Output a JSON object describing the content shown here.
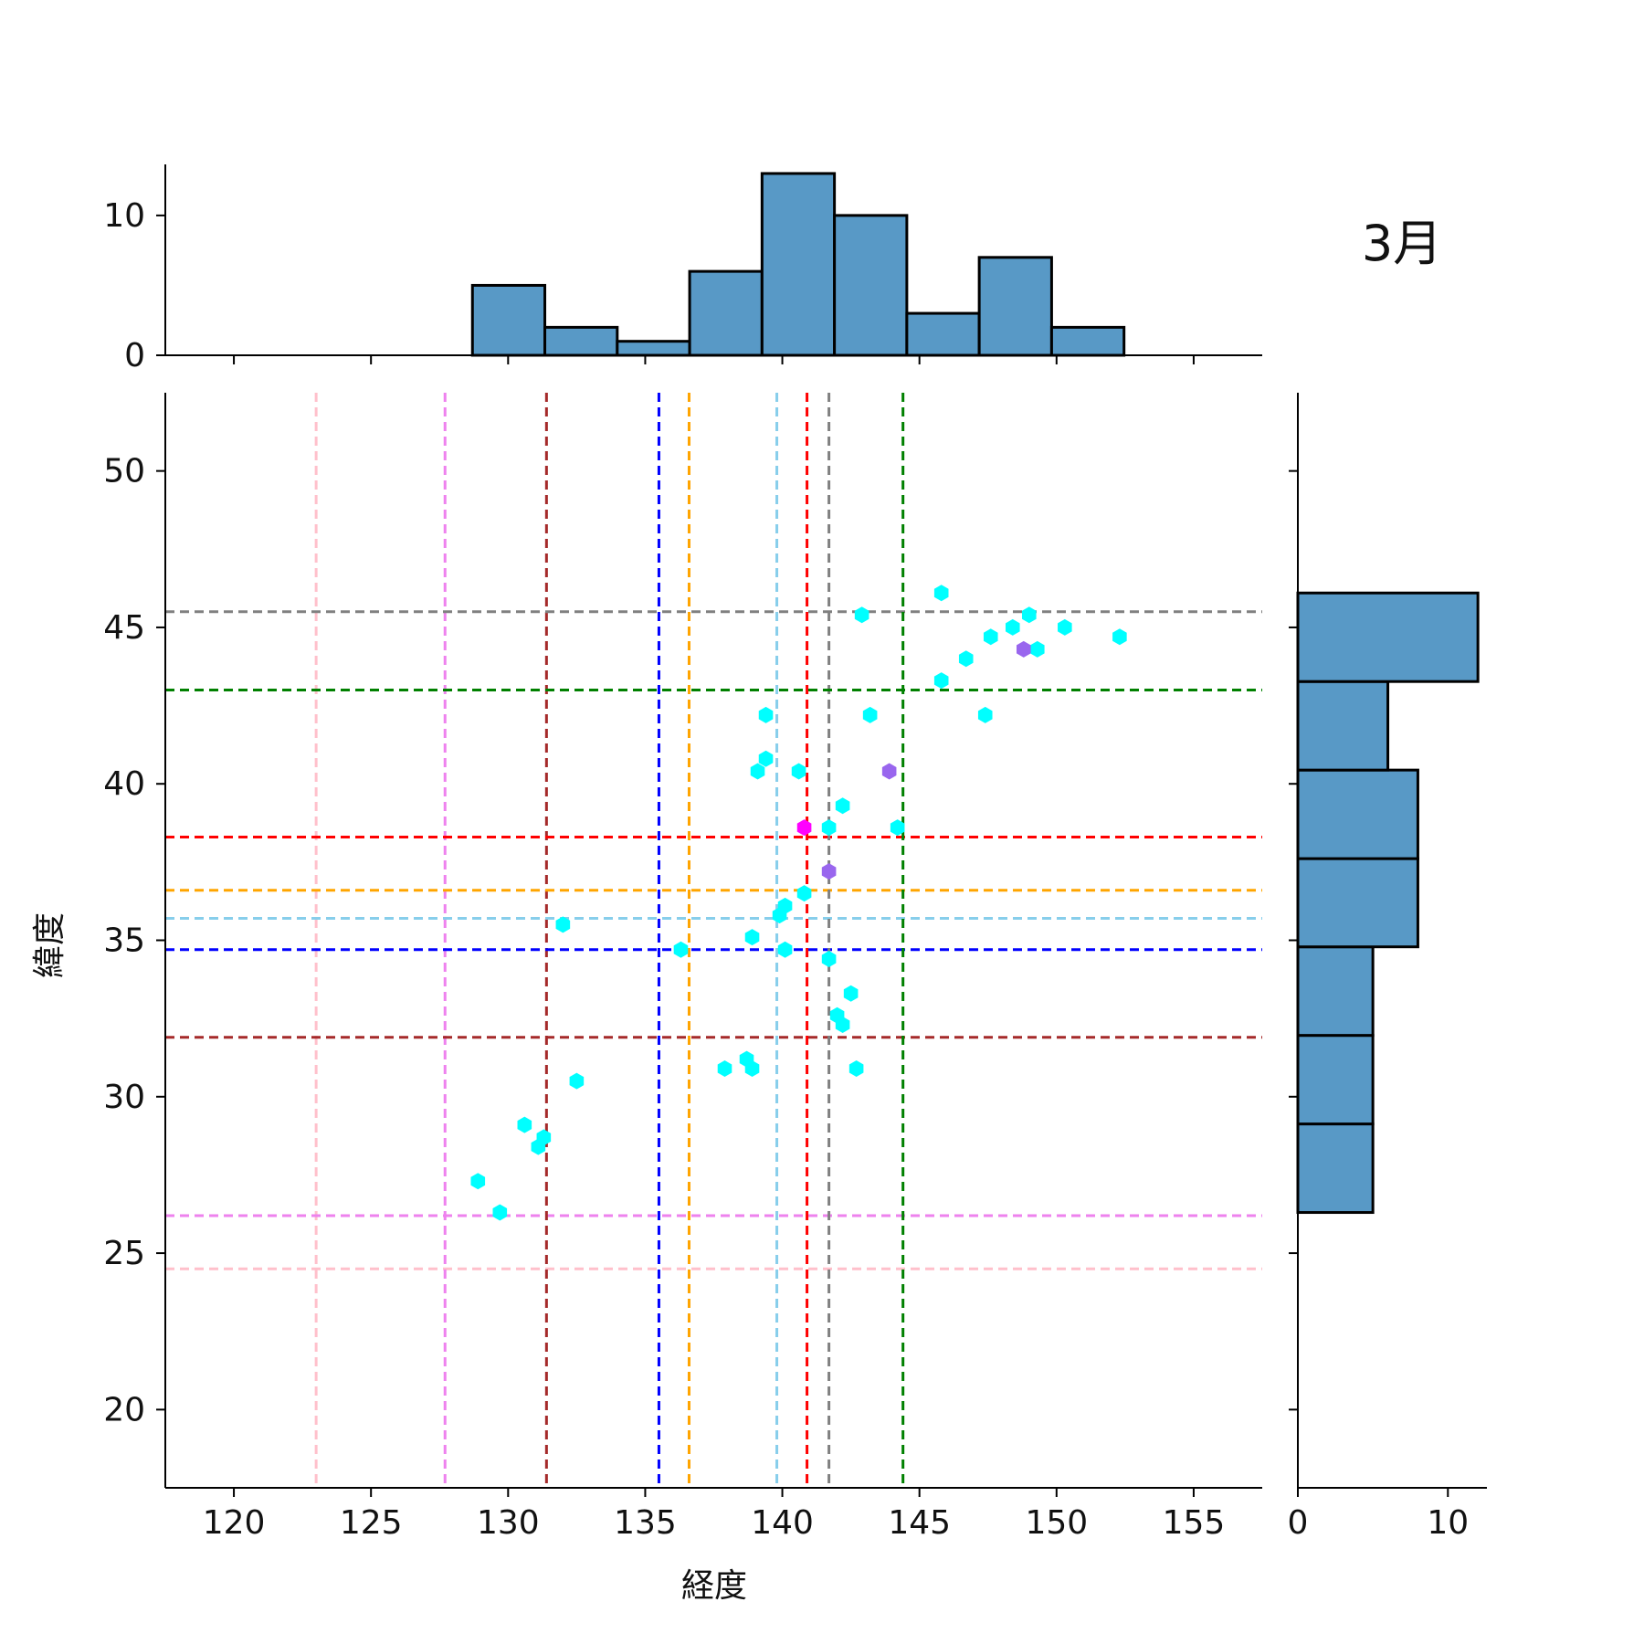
{
  "chart_data": {
    "type": "scatter",
    "subtype": "joint-hexbin-with-marginal-histograms",
    "annotation": "3月",
    "xlabel": "経度",
    "ylabel": "緯度",
    "xlim": [
      117.5,
      157.5
    ],
    "ylim": [
      17.5,
      52.5
    ],
    "xticks": [
      120,
      125,
      130,
      135,
      140,
      145,
      150,
      155
    ],
    "yticks": [
      20,
      25,
      30,
      35,
      40,
      45,
      50
    ],
    "grid": false,
    "hex_colors": {
      "low": "#00ffff",
      "mid": "#9966ee",
      "high": "#ff00ff"
    },
    "hex_points": [
      {
        "x": 145.8,
        "y": 46.1,
        "level": "low"
      },
      {
        "x": 142.9,
        "y": 45.4,
        "level": "low"
      },
      {
        "x": 149.0,
        "y": 45.4,
        "level": "low"
      },
      {
        "x": 148.4,
        "y": 45.0,
        "level": "low"
      },
      {
        "x": 150.3,
        "y": 45.0,
        "level": "low"
      },
      {
        "x": 147.6,
        "y": 44.7,
        "level": "low"
      },
      {
        "x": 152.3,
        "y": 44.7,
        "level": "low"
      },
      {
        "x": 149.3,
        "y": 44.3,
        "level": "low"
      },
      {
        "x": 148.8,
        "y": 44.3,
        "level": "mid"
      },
      {
        "x": 146.7,
        "y": 44.0,
        "level": "low"
      },
      {
        "x": 145.8,
        "y": 43.3,
        "level": "low"
      },
      {
        "x": 139.4,
        "y": 42.2,
        "level": "low"
      },
      {
        "x": 143.2,
        "y": 42.2,
        "level": "low"
      },
      {
        "x": 147.4,
        "y": 42.2,
        "level": "low"
      },
      {
        "x": 139.4,
        "y": 40.8,
        "level": "low"
      },
      {
        "x": 139.1,
        "y": 40.4,
        "level": "low"
      },
      {
        "x": 140.6,
        "y": 40.4,
        "level": "low"
      },
      {
        "x": 143.9,
        "y": 40.4,
        "level": "mid"
      },
      {
        "x": 142.2,
        "y": 39.3,
        "level": "low"
      },
      {
        "x": 140.8,
        "y": 38.6,
        "level": "high"
      },
      {
        "x": 141.7,
        "y": 38.6,
        "level": "low"
      },
      {
        "x": 144.2,
        "y": 38.6,
        "level": "low"
      },
      {
        "x": 141.7,
        "y": 37.2,
        "level": "mid"
      },
      {
        "x": 140.8,
        "y": 36.5,
        "level": "low"
      },
      {
        "x": 140.1,
        "y": 36.1,
        "level": "low"
      },
      {
        "x": 139.9,
        "y": 35.8,
        "level": "low"
      },
      {
        "x": 132.0,
        "y": 35.5,
        "level": "low"
      },
      {
        "x": 138.9,
        "y": 35.1,
        "level": "low"
      },
      {
        "x": 136.3,
        "y": 34.7,
        "level": "low"
      },
      {
        "x": 140.1,
        "y": 34.7,
        "level": "low"
      },
      {
        "x": 141.7,
        "y": 34.4,
        "level": "low"
      },
      {
        "x": 142.5,
        "y": 33.3,
        "level": "low"
      },
      {
        "x": 142.0,
        "y": 32.6,
        "level": "low"
      },
      {
        "x": 142.2,
        "y": 32.3,
        "level": "low"
      },
      {
        "x": 138.7,
        "y": 31.2,
        "level": "low"
      },
      {
        "x": 137.9,
        "y": 30.9,
        "level": "low"
      },
      {
        "x": 138.9,
        "y": 30.9,
        "level": "low"
      },
      {
        "x": 142.7,
        "y": 30.9,
        "level": "low"
      },
      {
        "x": 132.5,
        "y": 30.5,
        "level": "low"
      },
      {
        "x": 130.6,
        "y": 29.1,
        "level": "low"
      },
      {
        "x": 131.3,
        "y": 28.7,
        "level": "low"
      },
      {
        "x": 131.1,
        "y": 28.4,
        "level": "low"
      },
      {
        "x": 128.9,
        "y": 27.3,
        "level": "low"
      },
      {
        "x": 129.7,
        "y": 26.3,
        "level": "low"
      }
    ],
    "reference_lines": [
      {
        "color": "#ffc0cb",
        "x": 123.0,
        "y": 24.5
      },
      {
        "color": "#ee82ee",
        "x": 127.7,
        "y": 26.2
      },
      {
        "color": "#a52a2a",
        "x": 131.4,
        "y": 31.9
      },
      {
        "color": "#0000ff",
        "x": 135.5,
        "y": 34.7
      },
      {
        "color": "#ffa500",
        "x": 136.6,
        "y": 36.6
      },
      {
        "color": "#87ceeb",
        "x": 139.8,
        "y": 35.7
      },
      {
        "color": "#ff0000",
        "x": 140.9,
        "y": 38.3
      },
      {
        "color": "#808080",
        "x": 141.7,
        "y": 45.5
      },
      {
        "color": "#008000",
        "x": 144.4,
        "y": 43.0
      }
    ],
    "marginal_x": {
      "bin_edges": [
        128.7,
        131.34,
        133.98,
        136.62,
        139.26,
        141.9,
        144.54,
        147.18,
        149.82,
        152.46
      ],
      "counts": [
        5,
        2,
        1,
        6,
        13,
        10,
        3,
        7,
        2
      ],
      "ylim": [
        0,
        13.65
      ],
      "yticks": [
        0,
        10
      ]
    },
    "marginal_y": {
      "bin_edges": [
        26.3,
        29.13,
        31.96,
        34.79,
        37.61,
        40.44,
        43.27,
        46.1
      ],
      "counts": [
        5,
        5,
        5,
        8,
        8,
        6,
        12
      ],
      "xlim": [
        0,
        12.6
      ],
      "xticks": [
        0,
        10
      ]
    },
    "histogram_color": "#5899c6"
  }
}
